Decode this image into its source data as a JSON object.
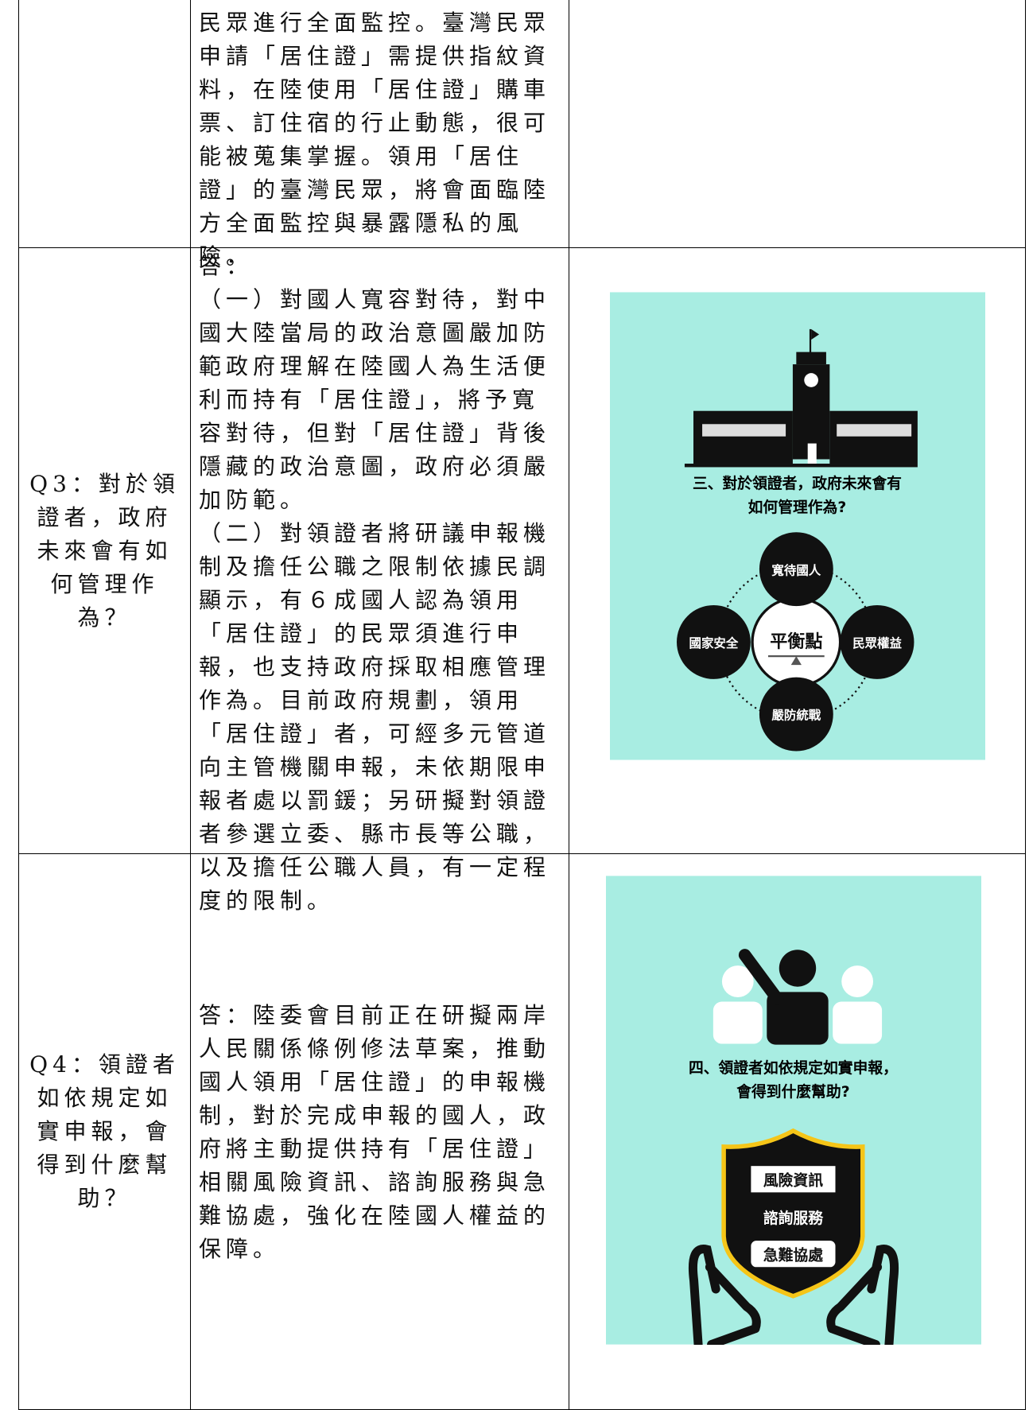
{
  "table": {
    "rows": [
      {
        "question": "",
        "answer": "民眾進行全面監控。臺灣民眾申請「居住證」需提供指紋資料，在陸使用「居住證」購車票、訂住宿的行止動態，很可能被蒐集掌握。領用「居住證」的臺灣民眾，將會面臨陸方全面監控與暴露隱私的風險。"
      },
      {
        "question": "Q3：對於領證者，政府未來會有如何管理作為？",
        "answer": "答：\n（一）對國人寬容對待，對中國大陸當局的政治意圖嚴加防範政府理解在陸國人為生活便利而持有「居住證」，將予寬容對待，但對「居住證」背後隱藏的政治意圖，政府必須嚴加防範。\n（二）對領證者將研議申報機制及擔任公職之限制依據民調顯示，有６成國人認為領用「居住證」的民眾須進行申報，也支持政府採取相應管理作為。目前政府規劃，領用「居住證」者，可經多元管道向主管機關申報，未依期限申報者處以罰鍰；另研擬對領證者參選立委、縣市長等公職，以及擔任公職人員，有一定程度的限制。",
        "image": {
          "title_1": "三、對於領證者，政府未來會有",
          "title_2": "如何管理作為?",
          "center": "平衡點",
          "top": "寬待國人",
          "left": "國家安全",
          "right": "民眾權益",
          "bottom": "嚴防統戰"
        }
      },
      {
        "question": "Q4：領證者如依規定如實申報，會得到什麼幫助？",
        "answer": "答：陸委會目前正在研擬兩岸人民關係條例修法草案，推動國人領用「居住證」的申報機制，對於完成申報的國人，政府將主動提供持有「居住證」相關風險資訊、諮詢服務與急難協處，強化在陸國人權益的保障。",
        "image": {
          "title_1": "四、領證者如依規定如實申報，",
          "title_2": "會得到什麼幫助?",
          "item_1": "風險資訊",
          "item_2": "諮詢服務",
          "item_3": "急難協處"
        }
      }
    ]
  }
}
